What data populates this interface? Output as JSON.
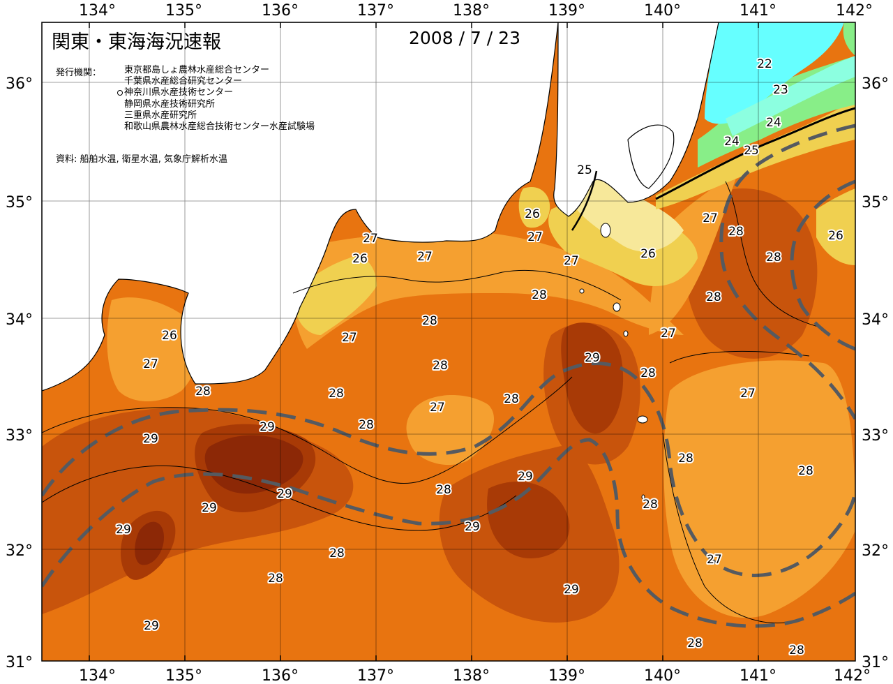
{
  "title": "関東・東海海況速報",
  "date": "2008 / 7 / 23",
  "issuer_label": "発行機関：",
  "issuers": [
    "東京都島しょ農林水産総合センター",
    "千葉県水産総合研究センター",
    "神奈川県水産技術センター",
    "静岡県水産技術研究所",
    "三重県水産研究所",
    "和歌山県農林水産総合技術センター水産試験場"
  ],
  "source": "資料: 船舶水温, 衛星水温, 気象庁解析水温",
  "axes": {
    "lon_labels": [
      "134°",
      "135°",
      "136°",
      "137°",
      "138°",
      "139°",
      "140°",
      "141°",
      "142°"
    ],
    "lat_labels": [
      "36°",
      "35°",
      "34°",
      "33°",
      "32°",
      "31°"
    ]
  },
  "isotherm_labels": [
    "22",
    "23",
    "24",
    "24",
    "25",
    "25",
    "26",
    "26",
    "26",
    "26",
    "26",
    "27",
    "27",
    "27",
    "27",
    "27",
    "27",
    "27",
    "27",
    "27",
    "27",
    "28",
    "28",
    "28",
    "28",
    "28",
    "28",
    "28",
    "28",
    "28",
    "28",
    "28",
    "28",
    "28",
    "28",
    "28",
    "28",
    "29",
    "29",
    "29",
    "29",
    "29",
    "29",
    "29",
    "29",
    "29"
  ],
  "colors": {
    "sst_22": "#66ffff",
    "sst_23": "#8cffe0",
    "sst_24": "#88ee88",
    "sst_25": "#f7e89a",
    "sst_26": "#f0d050",
    "sst_27": "#f5a030",
    "sst_28": "#e87410",
    "sst_28_5": "#c8540c",
    "sst_29": "#a83a06",
    "sst_29_5": "#8c2806",
    "land": "#ffffff",
    "kuroshio_path": "#555a60"
  }
}
